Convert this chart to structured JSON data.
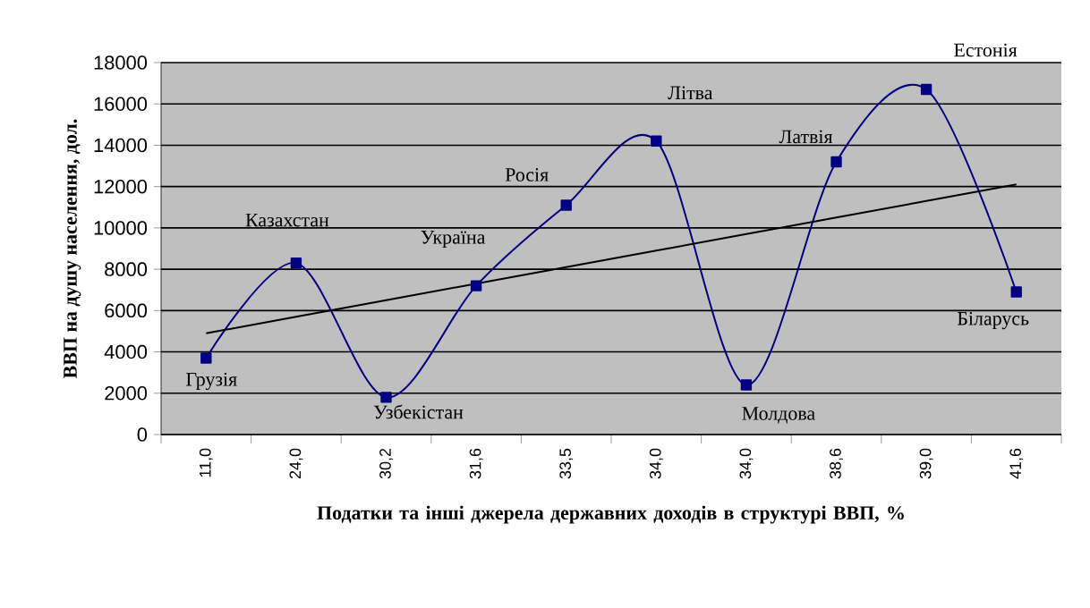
{
  "chart_data": {
    "type": "line",
    "xlabel": "Податки та інші джерела державних доходів в структурі ВВП, %",
    "ylabel": "ВВП на душу населення, дол.",
    "categories": [
      "11,0",
      "24,0",
      "30,2",
      "31,6",
      "33,5",
      "34,0",
      "34,0",
      "38,6",
      "39,0",
      "41,6"
    ],
    "series": [
      {
        "color": "#000080",
        "marker": "square",
        "values": [
          3700,
          8300,
          1800,
          7200,
          11100,
          14200,
          2400,
          13200,
          16700,
          6900
        ]
      },
      {
        "color": "#000000",
        "marker": "none",
        "values": [
          4900,
          5700,
          6500,
          7300,
          8100,
          8900,
          9700,
          10500,
          11300,
          12100
        ]
      }
    ],
    "ylim": [
      0,
      18000
    ],
    "yticks": [
      0,
      2000,
      4000,
      6000,
      8000,
      10000,
      12000,
      14000,
      16000,
      18000
    ],
    "grid": "y",
    "annotations": [
      "Грузія",
      "Казахстан",
      "Узбекістан",
      "Україна",
      "Росія",
      "Літва",
      "Молдова",
      "Латвія",
      "Естонія",
      "Біларусь"
    ]
  }
}
